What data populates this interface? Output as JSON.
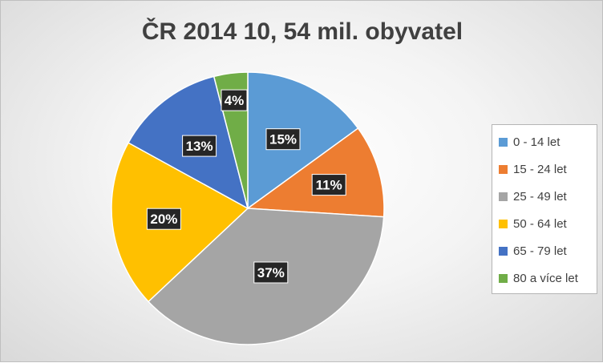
{
  "chart_data": {
    "type": "pie",
    "title": "ČR 2014 10, 54 mil. obyvatel",
    "categories": [
      "0 - 14 let",
      "15 - 24 let",
      "25 - 49 let",
      "50 - 64 let",
      "65 - 79 let",
      "80 a více let"
    ],
    "values": [
      15,
      11,
      37,
      20,
      13,
      4
    ],
    "labels": [
      "15%",
      "11%",
      "37%",
      "20%",
      "13%",
      "4%"
    ],
    "colors": [
      "#5b9bd5",
      "#ed7d31",
      "#a5a5a5",
      "#ffc000",
      "#4472c4",
      "#70ad47"
    ],
    "legend_position": "right",
    "start_angle_deg": 0,
    "direction": "clockwise"
  }
}
